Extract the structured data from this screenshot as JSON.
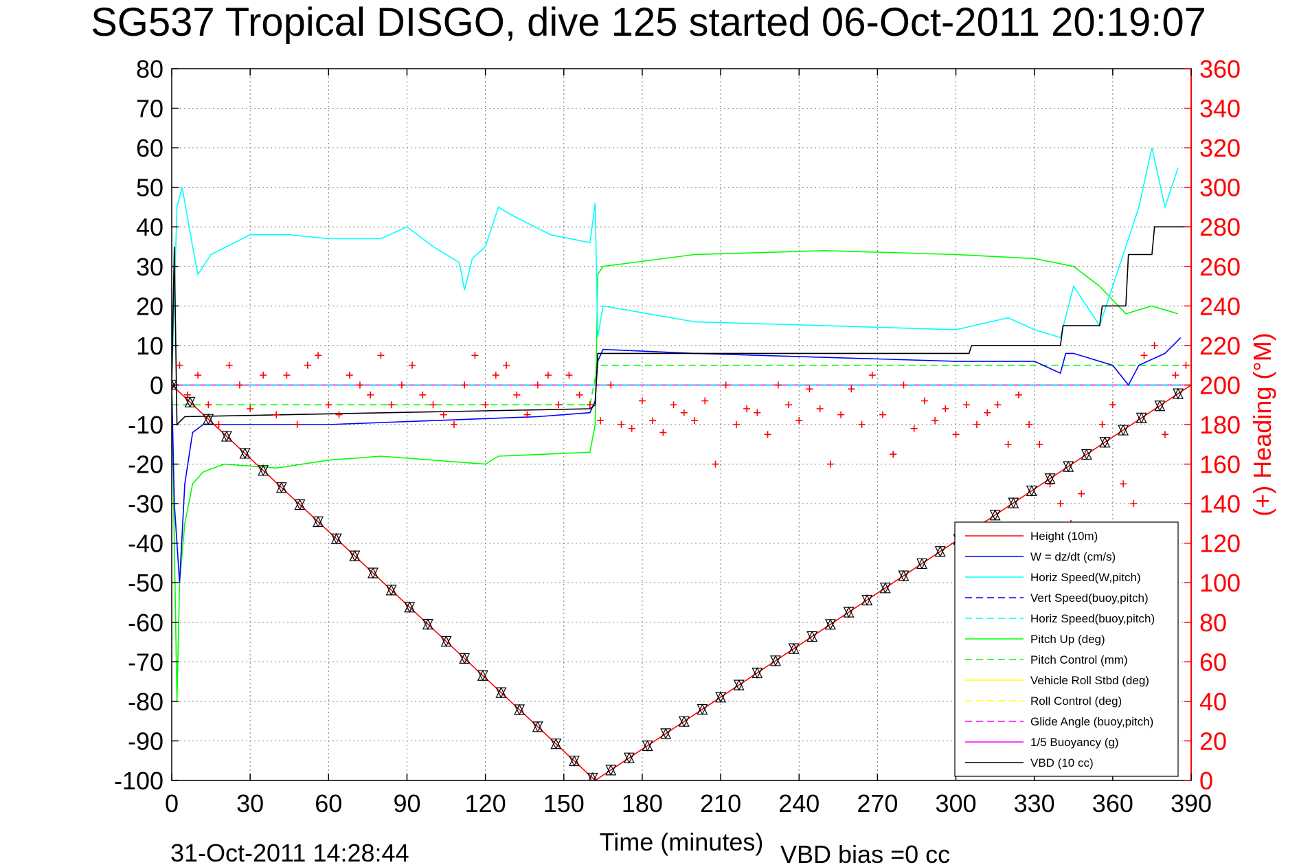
{
  "chart_data": {
    "type": "line",
    "title": "SG537 Tropical DISGO, dive 125 started 06-Oct-2011 20:19:07",
    "xlabel": "Time (minutes)",
    "ylabel_right": "(+) Heading (°M)",
    "xlim": [
      0,
      390
    ],
    "ylim": [
      -100,
      80
    ],
    "ylim_right": [
      0,
      360
    ],
    "xticks": [
      0,
      30,
      60,
      90,
      120,
      150,
      180,
      210,
      240,
      270,
      300,
      330,
      360,
      390
    ],
    "yticks": [
      -100,
      -90,
      -80,
      -70,
      -60,
      -50,
      -40,
      -30,
      -20,
      -10,
      0,
      10,
      20,
      30,
      40,
      50,
      60,
      70,
      80
    ],
    "yticks_right": [
      0,
      20,
      40,
      60,
      80,
      100,
      120,
      140,
      160,
      180,
      200,
      220,
      240,
      260,
      280,
      300,
      320,
      340,
      360
    ],
    "grid": true,
    "legend_position": "bottom-right",
    "footer_left": "31-Oct-2011 14:28:44",
    "footer_right": "VBD bias =0 cc",
    "series": [
      {
        "name": "Height (10m)",
        "color": "#ff0000",
        "style": "solid",
        "x": [
          0,
          162,
          390
        ],
        "y": [
          0,
          -100,
          0
        ]
      },
      {
        "name": "W = dz/dt (cm/s)",
        "color": "#0000ff",
        "style": "solid",
        "x": [
          0,
          1,
          3,
          5,
          8,
          12,
          20,
          40,
          60,
          100,
          140,
          160,
          162,
          163,
          165,
          200,
          250,
          300,
          330,
          340,
          342,
          345,
          360,
          366,
          370,
          380,
          386
        ],
        "y": [
          0,
          -30,
          -50,
          -25,
          -12,
          -10,
          -10,
          -10,
          -10,
          -9,
          -8,
          -7,
          -4,
          6,
          9,
          8,
          7,
          6,
          6,
          3,
          8,
          8,
          5,
          0,
          5,
          8,
          12
        ]
      },
      {
        "name": "Horiz Speed(W,pitch)",
        "color": "#00ffff",
        "style": "solid",
        "x": [
          0,
          2,
          4,
          8,
          10,
          15,
          30,
          45,
          60,
          80,
          90,
          100,
          110,
          112,
          115,
          120,
          125,
          130,
          145,
          160,
          162,
          163,
          165,
          200,
          250,
          300,
          320,
          330,
          340,
          345,
          355,
          365,
          370,
          375,
          380,
          385
        ],
        "y": [
          0,
          45,
          50,
          35,
          28,
          33,
          38,
          38,
          37,
          37,
          40,
          35,
          31,
          24,
          32,
          35,
          45,
          43,
          38,
          36,
          46,
          12,
          20,
          16,
          15,
          14,
          17,
          14,
          12,
          25,
          15,
          35,
          45,
          60,
          45,
          55
        ]
      },
      {
        "name": "Vert Speed(buoy,pitch)",
        "color": "#0000ff",
        "style": "dashed",
        "x": [
          0,
          390
        ],
        "y": [
          0,
          0
        ]
      },
      {
        "name": "Horiz Speed(buoy,pitch)",
        "color": "#00ffff",
        "style": "dashed",
        "x": [
          0,
          390
        ],
        "y": [
          0,
          0
        ]
      },
      {
        "name": "Pitch Up (deg)",
        "color": "#00ff00",
        "style": "solid",
        "x": [
          0,
          2,
          3,
          5,
          8,
          12,
          20,
          40,
          60,
          80,
          120,
          125,
          160,
          162,
          163,
          165,
          200,
          250,
          300,
          330,
          345,
          355,
          365,
          375,
          385
        ],
        "y": [
          0,
          -80,
          -50,
          -35,
          -25,
          -22,
          -20,
          -21,
          -19,
          -18,
          -20,
          -18,
          -17,
          -10,
          28,
          30,
          33,
          34,
          33,
          32,
          30,
          25,
          18,
          20,
          18
        ]
      },
      {
        "name": "Pitch Control (mm)",
        "color": "#00ff00",
        "style": "dashed",
        "x": [
          0,
          160,
          163,
          390
        ],
        "y": [
          -5,
          -5,
          5,
          5
        ]
      },
      {
        "name": "Vehicle Roll Stbd (deg)",
        "color": "#ffff00",
        "style": "solid",
        "x": [
          0,
          390
        ],
        "y": [
          0,
          0
        ]
      },
      {
        "name": "Roll Control (deg)",
        "color": "#ffff00",
        "style": "dashed",
        "x": [
          0,
          390
        ],
        "y": [
          0,
          0
        ]
      },
      {
        "name": "Glide Angle (buoy,pitch)",
        "color": "#ff00ff",
        "style": "dashed",
        "x": [
          0,
          390
        ],
        "y": [
          0,
          0
        ]
      },
      {
        "name": "1/5 Buoyancy (g)",
        "color": "#ff00ff",
        "style": "solid",
        "x": [
          0,
          390
        ],
        "y": [
          0,
          0
        ]
      },
      {
        "name": "VBD (10 cc)",
        "color": "#000000",
        "style": "solid",
        "x": [
          0,
          1,
          2,
          5,
          160,
          162,
          163,
          250,
          305,
          306,
          340,
          341,
          355,
          356,
          365,
          366,
          375,
          376,
          390
        ],
        "y": [
          0,
          35,
          -10,
          -8,
          -6,
          -5,
          8,
          8,
          8,
          10,
          10,
          15,
          15,
          20,
          20,
          33,
          33,
          40,
          40
        ]
      }
    ],
    "heading": {
      "axis": "right",
      "color": "#ff0000",
      "marker": "+",
      "x": [
        3,
        6,
        10,
        14,
        18,
        22,
        26,
        30,
        35,
        40,
        44,
        48,
        52,
        56,
        60,
        64,
        68,
        72,
        76,
        80,
        84,
        88,
        92,
        96,
        100,
        104,
        108,
        112,
        116,
        120,
        124,
        128,
        132,
        136,
        140,
        144,
        148,
        152,
        156,
        160,
        164,
        168,
        172,
        176,
        180,
        184,
        188,
        192,
        196,
        200,
        204,
        208,
        212,
        216,
        220,
        224,
        228,
        232,
        236,
        240,
        244,
        248,
        252,
        256,
        260,
        264,
        268,
        272,
        276,
        280,
        284,
        288,
        292,
        296,
        300,
        304,
        308,
        312,
        316,
        320,
        324,
        328,
        332,
        336,
        340,
        344,
        348,
        352,
        356,
        360,
        364,
        368,
        372,
        376,
        380,
        384,
        388
      ],
      "y": [
        210,
        195,
        205,
        190,
        180,
        210,
        200,
        188,
        205,
        185,
        205,
        180,
        210,
        215,
        190,
        185,
        205,
        200,
        195,
        215,
        190,
        200,
        210,
        195,
        190,
        185,
        180,
        200,
        215,
        190,
        205,
        210,
        195,
        185,
        200,
        205,
        190,
        205,
        195,
        190,
        182,
        200,
        180,
        178,
        192,
        182,
        176,
        190,
        186,
        182,
        192,
        160,
        200,
        180,
        188,
        186,
        175,
        200,
        190,
        182,
        198,
        188,
        160,
        185,
        198,
        180,
        205,
        185,
        165,
        200,
        178,
        192,
        182,
        188,
        175,
        190,
        180,
        186,
        190,
        170,
        195,
        180,
        170,
        150,
        140,
        130,
        145,
        120,
        180,
        190,
        150,
        140,
        215,
        220,
        175,
        205,
        210
      ]
    }
  }
}
